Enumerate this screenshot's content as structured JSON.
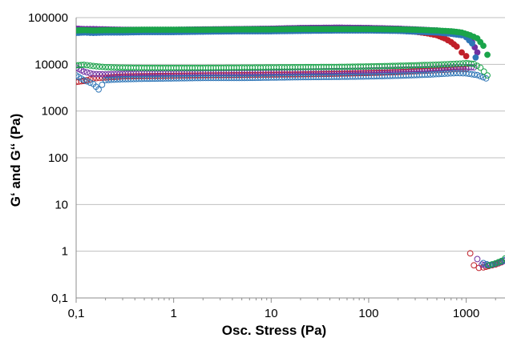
{
  "chart_data": {
    "type": "scatter",
    "title": "",
    "xlabel": "Osc. Stress (Pa)",
    "ylabel": "G‘ and G‘‘ (Pa)",
    "x_scale": "log",
    "y_scale": "log",
    "xlim": [
      0.1,
      2500
    ],
    "ylim": [
      0.1,
      100000
    ],
    "x_ticks": [
      {
        "value": 0.1,
        "label": "0,1"
      },
      {
        "value": 1,
        "label": "1"
      },
      {
        "value": 10,
        "label": "10"
      },
      {
        "value": 100,
        "label": "100"
      },
      {
        "value": 1000,
        "label": "1000"
      }
    ],
    "y_ticks": [
      {
        "value": 0.1,
        "label": "0,1"
      },
      {
        "value": 1,
        "label": "1"
      },
      {
        "value": 10,
        "label": "10"
      },
      {
        "value": 100,
        "label": "100"
      },
      {
        "value": 1000,
        "label": "1000"
      },
      {
        "value": 10000,
        "label": "10000"
      },
      {
        "value": 100000,
        "label": "100000"
      }
    ],
    "grid": {
      "horizontal": true,
      "vertical": false
    },
    "legend": "none",
    "series": [
      {
        "color": "#c0202a",
        "marker": "filled",
        "points": [
          [
            0.1,
            50000
          ],
          [
            0.12,
            52000
          ],
          [
            0.15,
            50000
          ],
          [
            0.2,
            51000
          ],
          [
            0.3,
            52000
          ],
          [
            0.5,
            52000
          ],
          [
            1,
            53000
          ],
          [
            2,
            53000
          ],
          [
            5,
            54000
          ],
          [
            10,
            55000
          ],
          [
            20,
            56000
          ],
          [
            50,
            56000
          ],
          [
            100,
            56000
          ],
          [
            200,
            53000
          ],
          [
            300,
            50000
          ],
          [
            400,
            46000
          ],
          [
            500,
            42000
          ],
          [
            600,
            36000
          ],
          [
            700,
            30000
          ],
          [
            800,
            24000
          ],
          [
            900,
            18000
          ],
          [
            1000,
            15000
          ]
        ]
      },
      {
        "color": "#7030a0",
        "marker": "filled",
        "points": [
          [
            0.1,
            58000
          ],
          [
            0.12,
            57000
          ],
          [
            0.15,
            57000
          ],
          [
            0.2,
            56000
          ],
          [
            0.3,
            55000
          ],
          [
            0.5,
            55000
          ],
          [
            1,
            55000
          ],
          [
            2,
            56000
          ],
          [
            5,
            57000
          ],
          [
            10,
            58000
          ],
          [
            20,
            60000
          ],
          [
            50,
            61000
          ],
          [
            100,
            60000
          ],
          [
            200,
            58000
          ],
          [
            300,
            56000
          ],
          [
            500,
            53000
          ],
          [
            700,
            48000
          ],
          [
            900,
            43000
          ],
          [
            1000,
            39000
          ],
          [
            1150,
            30000
          ],
          [
            1300,
            18000
          ]
        ]
      },
      {
        "color": "#2e75b6",
        "marker": "filled",
        "points": [
          [
            0.1,
            47000
          ],
          [
            0.12,
            48000
          ],
          [
            0.15,
            47000
          ],
          [
            0.2,
            48000
          ],
          [
            0.3,
            48000
          ],
          [
            0.5,
            49000
          ],
          [
            1,
            49000
          ],
          [
            2,
            50000
          ],
          [
            5,
            51000
          ],
          [
            10,
            51000
          ],
          [
            20,
            52000
          ],
          [
            50,
            53000
          ],
          [
            100,
            53000
          ],
          [
            200,
            52000
          ],
          [
            300,
            50000
          ],
          [
            500,
            48000
          ],
          [
            700,
            45000
          ],
          [
            900,
            42000
          ],
          [
            1000,
            38000
          ],
          [
            1150,
            28000
          ],
          [
            1250,
            14000
          ]
        ]
      },
      {
        "color": "#1aa44a",
        "marker": "filled",
        "points": [
          [
            0.1,
            53000
          ],
          [
            0.12,
            54000
          ],
          [
            0.15,
            53000
          ],
          [
            0.2,
            54000
          ],
          [
            0.3,
            54000
          ],
          [
            0.5,
            55000
          ],
          [
            1,
            55000
          ],
          [
            2,
            55000
          ],
          [
            5,
            56000
          ],
          [
            10,
            56000
          ],
          [
            20,
            57000
          ],
          [
            50,
            57000
          ],
          [
            100,
            57000
          ],
          [
            200,
            56000
          ],
          [
            300,
            55000
          ],
          [
            500,
            53000
          ],
          [
            700,
            51000
          ],
          [
            900,
            48000
          ],
          [
            1100,
            42000
          ],
          [
            1300,
            36000
          ],
          [
            1500,
            25000
          ],
          [
            1650,
            16000
          ]
        ]
      },
      {
        "color": "#c0202a",
        "marker": "open",
        "points": [
          [
            0.1,
            4200
          ],
          [
            0.12,
            4400
          ],
          [
            0.15,
            5000
          ],
          [
            0.2,
            5200
          ],
          [
            0.3,
            5500
          ],
          [
            0.5,
            5600
          ],
          [
            1,
            5700
          ],
          [
            2,
            5800
          ],
          [
            5,
            5900
          ],
          [
            10,
            6000
          ],
          [
            20,
            6100
          ],
          [
            50,
            6300
          ],
          [
            100,
            6500
          ],
          [
            200,
            6800
          ],
          [
            400,
            7300
          ],
          [
            600,
            7600
          ],
          [
            800,
            8000
          ],
          [
            1000,
            8000
          ],
          [
            1100,
            0.9
          ],
          [
            1200,
            0.5
          ],
          [
            1350,
            0.44
          ],
          [
            1500,
            0.45
          ],
          [
            1700,
            0.48
          ],
          [
            2000,
            0.52
          ],
          [
            2300,
            0.58
          ]
        ]
      },
      {
        "color": "#7030a0",
        "marker": "open",
        "points": [
          [
            0.1,
            8500
          ],
          [
            0.12,
            7000
          ],
          [
            0.15,
            6200
          ],
          [
            0.2,
            6100
          ],
          [
            0.3,
            6300
          ],
          [
            0.5,
            6500
          ],
          [
            1,
            6500
          ],
          [
            2,
            6600
          ],
          [
            5,
            6700
          ],
          [
            10,
            6800
          ],
          [
            20,
            7000
          ],
          [
            50,
            7200
          ],
          [
            100,
            7400
          ],
          [
            200,
            7700
          ],
          [
            400,
            8000
          ],
          [
            600,
            8400
          ],
          [
            800,
            8700
          ],
          [
            1000,
            8800
          ],
          [
            1200,
            8600
          ],
          [
            1300,
            0.68
          ],
          [
            1450,
            0.52
          ],
          [
            1650,
            0.5
          ],
          [
            1900,
            0.52
          ],
          [
            2200,
            0.58
          ],
          [
            2500,
            0.62
          ]
        ]
      },
      {
        "color": "#2e75b6",
        "marker": "open",
        "points": [
          [
            0.1,
            5800
          ],
          [
            0.12,
            4600
          ],
          [
            0.15,
            3800
          ],
          [
            0.17,
            2900
          ],
          [
            0.2,
            4600
          ],
          [
            0.3,
            4800
          ],
          [
            0.5,
            4900
          ],
          [
            1,
            5000
          ],
          [
            2,
            5100
          ],
          [
            5,
            5100
          ],
          [
            10,
            5200
          ],
          [
            20,
            5300
          ],
          [
            50,
            5400
          ],
          [
            100,
            5500
          ],
          [
            200,
            5700
          ],
          [
            400,
            6000
          ],
          [
            600,
            6300
          ],
          [
            800,
            6500
          ],
          [
            1000,
            6400
          ],
          [
            1300,
            5900
          ],
          [
            1600,
            5000
          ],
          [
            1500,
            0.56
          ],
          [
            1750,
            0.5
          ],
          [
            2000,
            0.55
          ],
          [
            2300,
            0.6
          ],
          [
            2500,
            0.65
          ]
        ]
      },
      {
        "color": "#1aa44a",
        "marker": "open",
        "points": [
          [
            0.1,
            9500
          ],
          [
            0.12,
            9800
          ],
          [
            0.15,
            9200
          ],
          [
            0.2,
            8700
          ],
          [
            0.3,
            8500
          ],
          [
            0.5,
            8400
          ],
          [
            1,
            8400
          ],
          [
            2,
            8400
          ],
          [
            5,
            8500
          ],
          [
            10,
            8600
          ],
          [
            20,
            8700
          ],
          [
            50,
            8800
          ],
          [
            100,
            9000
          ],
          [
            200,
            9300
          ],
          [
            400,
            9700
          ],
          [
            600,
            10000
          ],
          [
            800,
            10300
          ],
          [
            1000,
            10600
          ],
          [
            1200,
            10200
          ],
          [
            1400,
            8500
          ],
          [
            1650,
            5800
          ],
          [
            1700,
            0.5
          ],
          [
            2000,
            0.55
          ],
          [
            2300,
            0.62
          ],
          [
            2500,
            0.7
          ]
        ]
      }
    ]
  }
}
